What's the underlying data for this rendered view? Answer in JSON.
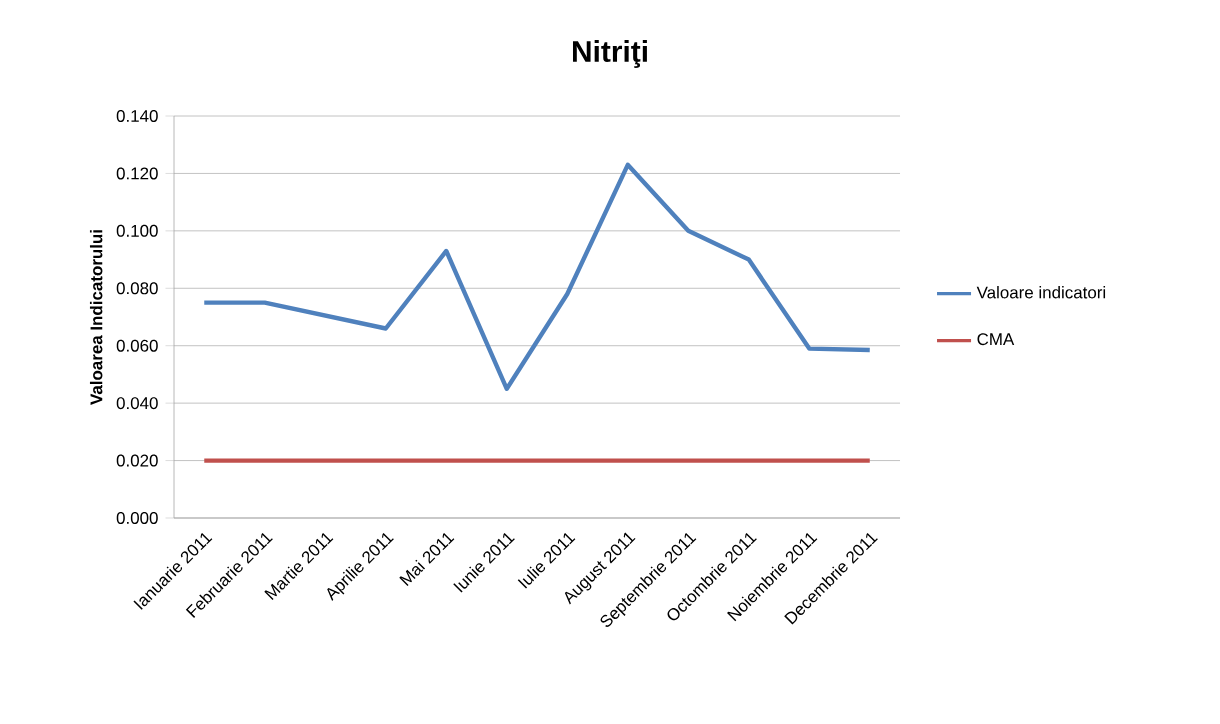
{
  "chart_data": {
    "type": "line",
    "title": "Nitriţi",
    "ylabel": "Valoarea Indicatorului",
    "categories": [
      "Ianuarie 2011",
      "Februarie 2011",
      "Martie 2011",
      "Aprilie 2011",
      "Mai 2011",
      "Iunie 2011",
      "Iulie 2011",
      "August 2011",
      "Septembrie 2011",
      "Octombrie 2011",
      "Noiembrie 2011",
      "Decembrie 2011"
    ],
    "series": [
      {
        "name": "Valoare indicatori",
        "color": "#4f81bd",
        "values": [
          0.075,
          0.075,
          0.0705,
          0.066,
          0.093,
          0.045,
          0.078,
          0.123,
          0.1,
          0.09,
          0.059,
          0.0585
        ]
      },
      {
        "name": "CMA",
        "color": "#c0504d",
        "values": [
          0.02,
          0.02,
          0.02,
          0.02,
          0.02,
          0.02,
          0.02,
          0.02,
          0.02,
          0.02,
          0.02,
          0.02
        ]
      }
    ],
    "ylim": [
      0,
      0.14
    ],
    "yticks": [
      {
        "value": 0,
        "label": "0.000"
      },
      {
        "value": 0.02,
        "label": "0.020"
      },
      {
        "value": 0.04,
        "label": "0.040"
      },
      {
        "value": 0.06,
        "label": "0.060"
      },
      {
        "value": 0.08,
        "label": "0.080"
      },
      {
        "value": 0.1,
        "label": "0.100"
      },
      {
        "value": 0.12,
        "label": "0.120"
      },
      {
        "value": 0.14,
        "label": "0.140"
      }
    ],
    "grid": "y",
    "legend": "right",
    "line_style": "solid"
  }
}
